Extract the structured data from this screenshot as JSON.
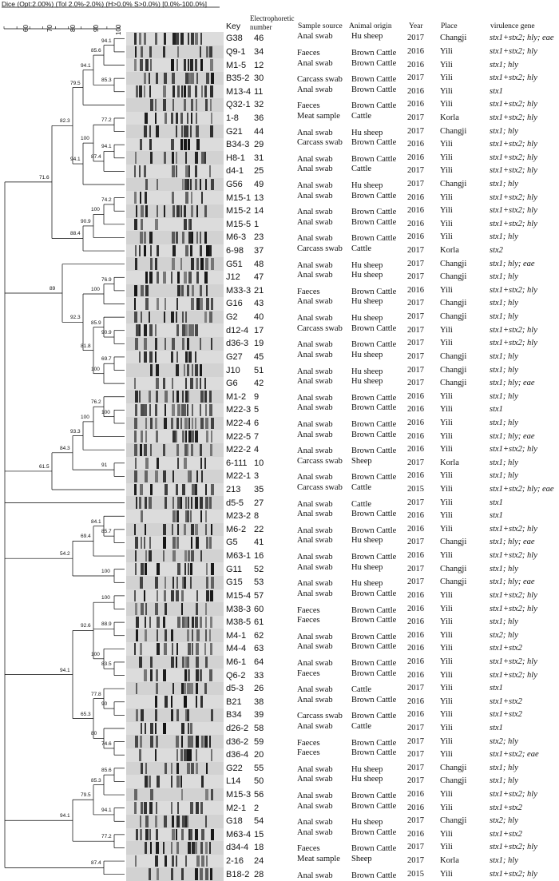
{
  "settings": "Dice (Opt:2.00%) (Tol 2.0%-2.0%) (H>0.0% S>0.0%) [0.0%-100.0%]",
  "scale_labels": [
    "60",
    "70",
    "80",
    "90",
    "100"
  ],
  "headers": {
    "key": "Key",
    "number": "Electrophoretic number",
    "source": "Sample source",
    "origin": "Animal origin",
    "year": "Year",
    "place": "Place",
    "virulence": "virulence gene"
  },
  "rows": [
    {
      "key": "G38",
      "num": "46",
      "source": "Anal swab",
      "origin": "Hu sheep",
      "year": "2017",
      "place": "Changji",
      "vir": "stx1+stx2; hly; eae"
    },
    {
      "key": "Q9-1",
      "num": "34",
      "source": "Faeces",
      "origin": "Brown Cattle",
      "year": "2016",
      "place": "Yili",
      "vir": "stx1+stx2; hly"
    },
    {
      "key": "M1-5",
      "num": "12",
      "source": "Anal swab",
      "origin": "Brown Cattle",
      "year": "2016",
      "place": "Yili",
      "vir": "stx1; hly"
    },
    {
      "key": "B35-2",
      "num": "30",
      "source": "Carcass swab",
      "origin": "Brown Cattle",
      "year": "2017",
      "place": "Yili",
      "vir": "stx1+stx2; hly"
    },
    {
      "key": "M13-4",
      "num": "11",
      "source": "Anal swab",
      "origin": "Brown Cattle",
      "year": "2016",
      "place": "Yili",
      "vir": "stx1"
    },
    {
      "key": "Q32-1",
      "num": "32",
      "source": "Faeces",
      "origin": "Brown Cattle",
      "year": "2016",
      "place": "Yili",
      "vir": "stx1+stx2; hly"
    },
    {
      "key": "1-8",
      "num": "36",
      "source": "Meat sample",
      "origin": "Cattle",
      "year": "2017",
      "place": "Korla",
      "vir": "stx1+stx2; hly"
    },
    {
      "key": "G21",
      "num": "44",
      "source": "Anal swab",
      "origin": "Hu sheep",
      "year": "2017",
      "place": "Changji",
      "vir": "stx1; hly"
    },
    {
      "key": "B34-3",
      "num": "29",
      "source": "Carcass swab",
      "origin": "Brown Cattle",
      "year": "2016",
      "place": "Yili",
      "vir": "stx1+stx2; hly"
    },
    {
      "key": "H8-1",
      "num": "31",
      "source": "Anal swab",
      "origin": "Brown Cattle",
      "year": "2016",
      "place": "Yili",
      "vir": "stx1+stx2; hly"
    },
    {
      "key": "d4-1",
      "num": "25",
      "source": "Anal swab",
      "origin": "Cattle",
      "year": "2017",
      "place": "Yili",
      "vir": "stx1+stx2; hly"
    },
    {
      "key": "G56",
      "num": "49",
      "source": "Anal swab",
      "origin": "Hu sheep",
      "year": "2017",
      "place": "Changji",
      "vir": "stx1; hly"
    },
    {
      "key": "M15-1",
      "num": "13",
      "source": "Anal swab",
      "origin": "Brown Cattle",
      "year": "2016",
      "place": "Yili",
      "vir": "stx1+stx2; hly"
    },
    {
      "key": "M15-2",
      "num": "14",
      "source": "Anal swab",
      "origin": "Brown Cattle",
      "year": "2016",
      "place": "Yili",
      "vir": "stx1+stx2; hly"
    },
    {
      "key": "M15-5",
      "num": "1",
      "source": "Anal swab",
      "origin": "Brown Cattle",
      "year": "2016",
      "place": "Yili",
      "vir": "stx1+stx2; hly"
    },
    {
      "key": "M6-3",
      "num": "23",
      "source": "Anal swab",
      "origin": "Brown Cattle",
      "year": "2016",
      "place": "Yili",
      "vir": "stx1; hly"
    },
    {
      "key": "6-98",
      "num": "37",
      "source": "Carcass swab",
      "origin": "Cattle",
      "year": "2017",
      "place": "Korla",
      "vir": "stx2"
    },
    {
      "key": "G51",
      "num": "48",
      "source": "Anal swab",
      "origin": "Hu sheep",
      "year": "2017",
      "place": "Changji",
      "vir": "stx1; hly; eae"
    },
    {
      "key": "J12",
      "num": "47",
      "source": "Anal swab",
      "origin": "Hu sheep",
      "year": "2017",
      "place": "Changji",
      "vir": "stx1; hly"
    },
    {
      "key": "M33-3",
      "num": "21",
      "source": "Faeces",
      "origin": "Brown Cattle",
      "year": "2016",
      "place": "Yili",
      "vir": "stx1+stx2; hly"
    },
    {
      "key": "G16",
      "num": "43",
      "source": "Anal swab",
      "origin": "Hu sheep",
      "year": "2017",
      "place": "Changji",
      "vir": "stx1; hly"
    },
    {
      "key": "G2",
      "num": "40",
      "source": "Anal swab",
      "origin": "Hu sheep",
      "year": "2017",
      "place": "Changji",
      "vir": "stx1; hly"
    },
    {
      "key": "d12-4",
      "num": "17",
      "source": "Carcass swab",
      "origin": "Brown Cattle",
      "year": "2017",
      "place": "Yili",
      "vir": "stx1+stx2; hly"
    },
    {
      "key": "d36-3",
      "num": "19",
      "source": "Anal swab",
      "origin": "Brown Cattle",
      "year": "2017",
      "place": "Yili",
      "vir": "stx1+stx2; hly"
    },
    {
      "key": "G27",
      "num": "45",
      "source": "Anal swab",
      "origin": "Hu sheep",
      "year": "2017",
      "place": "Changji",
      "vir": "stx1; hly"
    },
    {
      "key": "J10",
      "num": "51",
      "source": "Anal swab",
      "origin": "Hu sheep",
      "year": "2017",
      "place": "Changji",
      "vir": "stx1; hly"
    },
    {
      "key": "G6",
      "num": "42",
      "source": "Anal swab",
      "origin": "Hu sheep",
      "year": "2017",
      "place": "Changji",
      "vir": "stx1; hly; eae"
    },
    {
      "key": "M1-2",
      "num": "9",
      "source": "Anal swab",
      "origin": "Brown Cattle",
      "year": "2016",
      "place": "Yili",
      "vir": "stx1; hly"
    },
    {
      "key": "M22-3",
      "num": "5",
      "source": "Anal swab",
      "origin": "Brown Cattle",
      "year": "2016",
      "place": "Yili",
      "vir": "stx1"
    },
    {
      "key": "M22-4",
      "num": "6",
      "source": "Anal swab",
      "origin": "Brown Cattle",
      "year": "2016",
      "place": "Yili",
      "vir": "stx1; hly"
    },
    {
      "key": "M22-5",
      "num": "7",
      "source": "Anal swab",
      "origin": "Brown Cattle",
      "year": "2016",
      "place": "Yili",
      "vir": "stx1; hly; eae"
    },
    {
      "key": "M22-2",
      "num": "4",
      "source": "Anal swab",
      "origin": "Brown Cattle",
      "year": "2016",
      "place": "Yili",
      "vir": "stx1+stx2; hly"
    },
    {
      "key": "6-111",
      "num": "10",
      "source": "Carcass swab",
      "origin": "Sheep",
      "year": "2017",
      "place": "Korla",
      "vir": "stx1; hly"
    },
    {
      "key": "M22-1",
      "num": "3",
      "source": "Anal swab",
      "origin": "Brown Cattle",
      "year": "2016",
      "place": "Yili",
      "vir": "stx1; hly"
    },
    {
      "key": "213",
      "num": "35",
      "source": "Carcass swab",
      "origin": "Cattle",
      "year": "2015",
      "place": "Yili",
      "vir": "stx1+stx2; hly; eae"
    },
    {
      "key": "d5-5",
      "num": "27",
      "source": "Anal swab",
      "origin": "Cattle",
      "year": "2017",
      "place": "Yili",
      "vir": "stx1"
    },
    {
      "key": "M23-2",
      "num": "8",
      "source": "Anal swab",
      "origin": "Brown Cattle",
      "year": "2016",
      "place": "Yili",
      "vir": "stx1"
    },
    {
      "key": "M6-2",
      "num": "22",
      "source": "Anal swab",
      "origin": "Brown Cattle",
      "year": "2016",
      "place": "Yili",
      "vir": "stx1+stx2; hly"
    },
    {
      "key": "G5",
      "num": "41",
      "source": "Anal swab",
      "origin": "Hu sheep",
      "year": "2017",
      "place": "Changji",
      "vir": "stx1; hly; eae"
    },
    {
      "key": "M63-1",
      "num": "16",
      "source": "Anal swab",
      "origin": "Brown Cattle",
      "year": "2016",
      "place": "Yili",
      "vir": "stx1+stx2; hly"
    },
    {
      "key": "G11",
      "num": "52",
      "source": "Anal swab",
      "origin": "Hu sheep",
      "year": "2017",
      "place": "Changji",
      "vir": "stx1; hly"
    },
    {
      "key": "G15",
      "num": "53",
      "source": "Anal swab",
      "origin": "Hu sheep",
      "year": "2017",
      "place": "Changji",
      "vir": "stx1; hly; eae"
    },
    {
      "key": "M15-4",
      "num": "57",
      "source": "Anal swab",
      "origin": "Brown Cattle",
      "year": "2016",
      "place": "Yili",
      "vir": "stx1+stx2; hly"
    },
    {
      "key": "M38-3",
      "num": "60",
      "source": "Faeces",
      "origin": "Brown Cattle",
      "year": "2016",
      "place": "Yili",
      "vir": "stx1+stx2; hly"
    },
    {
      "key": "M38-5",
      "num": "61",
      "source": "Faeces",
      "origin": "Brown Cattle",
      "year": "2016",
      "place": "Yili",
      "vir": "stx1; hly"
    },
    {
      "key": "M4-1",
      "num": "62",
      "source": "Anal swab",
      "origin": "Brown Cattle",
      "year": "2016",
      "place": "Yili",
      "vir": "stx2; hly"
    },
    {
      "key": "M4-4",
      "num": "63",
      "source": "Anal swab",
      "origin": "Brown Cattle",
      "year": "2016",
      "place": "Yili",
      "vir": "stx1+stx2"
    },
    {
      "key": "M6-1",
      "num": "64",
      "source": "Anal swab",
      "origin": "Brown Cattle",
      "year": "2016",
      "place": "Yili",
      "vir": "stx1+stx2; hly"
    },
    {
      "key": "Q6-2",
      "num": "33",
      "source": "Faeces",
      "origin": "Brown Cattle",
      "year": "2016",
      "place": "Yili",
      "vir": "stx1+stx2; hly"
    },
    {
      "key": "d5-3",
      "num": "26",
      "source": "Anal swab",
      "origin": "Cattle",
      "year": "2017",
      "place": "Yili",
      "vir": "stx1"
    },
    {
      "key": "B21",
      "num": "38",
      "source": "Anal swab",
      "origin": "Brown Cattle",
      "year": "2016",
      "place": "Yili",
      "vir": "stx1+stx2"
    },
    {
      "key": "B34",
      "num": "39",
      "source": "Carcass swab",
      "origin": "Brown Cattle",
      "year": "2016",
      "place": "Yili",
      "vir": "stx1+stx2"
    },
    {
      "key": "d26-2",
      "num": "58",
      "source": "Anal swab",
      "origin": "Cattle",
      "year": "2017",
      "place": "Yili",
      "vir": "stx1"
    },
    {
      "key": "d36-2",
      "num": "59",
      "source": "Faeces",
      "origin": "Brown Cattle",
      "year": "2017",
      "place": "Yili",
      "vir": "stx2; hly"
    },
    {
      "key": "d36-4",
      "num": "20",
      "source": "Faeces",
      "origin": "Brown Cattle",
      "year": "2017",
      "place": "Yili",
      "vir": "stx1+stx2; eae"
    },
    {
      "key": "G22",
      "num": "55",
      "source": "Anal swab",
      "origin": "Hu sheep",
      "year": "2017",
      "place": "Changji",
      "vir": "stx1; hly"
    },
    {
      "key": "L14",
      "num": "50",
      "source": "Anal swab",
      "origin": "Hu sheep",
      "year": "2017",
      "place": "Changji",
      "vir": "stx1; hly"
    },
    {
      "key": "M15-3",
      "num": "56",
      "source": "Anal swab",
      "origin": "Brown Cattle",
      "year": "2016",
      "place": "Yili",
      "vir": "stx1+stx2; hly"
    },
    {
      "key": "M2-1",
      "num": "2",
      "source": "Anal swab",
      "origin": "Brown Cattle",
      "year": "2016",
      "place": "Yili",
      "vir": "stx1+stx2"
    },
    {
      "key": "G18",
      "num": "54",
      "source": "Anal swab",
      "origin": "Hu sheep",
      "year": "2017",
      "place": "Changji",
      "vir": "stx2; hly"
    },
    {
      "key": "M63-4",
      "num": "15",
      "source": "Anal swab",
      "origin": "Brown Cattle",
      "year": "2016",
      "place": "Yili",
      "vir": "stx1+stx2"
    },
    {
      "key": "d34-4",
      "num": "18",
      "source": "Faeces",
      "origin": "Brown Cattle",
      "year": "2017",
      "place": "Yili",
      "vir": "stx1+stx2; hly"
    },
    {
      "key": "2-16",
      "num": "24",
      "source": "Meat sample",
      "origin": "Sheep",
      "year": "2017",
      "place": "Korla",
      "vir": "stx1; hly"
    },
    {
      "key": "B18-2",
      "num": "28",
      "source": "Anal swab",
      "origin": "Brown Cattle",
      "year": "2015",
      "place": "Yili",
      "vir": "stx1+stx2; hly"
    }
  ],
  "node_values": [
    "94.1",
    "85.6",
    "85.3",
    "94.1",
    "79.5",
    "77.2",
    "94.1",
    "87.4",
    "100",
    "94.1",
    "82.3",
    "74.2",
    "100",
    "90.9",
    "88.4",
    "71.6",
    "76.9",
    "100",
    "90.9",
    "85.9",
    "69.7",
    "100",
    "81.8",
    "92.3",
    "89",
    "100",
    "76.2",
    "100",
    "93.3",
    "91",
    "84.3",
    "61.5",
    "85.7",
    "84.1",
    "69.4",
    "100",
    "54.2",
    "100",
    "88.9",
    "83.5",
    "100",
    "92.6",
    "90",
    "77.8",
    "74.6",
    "80",
    "65.3"
  ]
}
